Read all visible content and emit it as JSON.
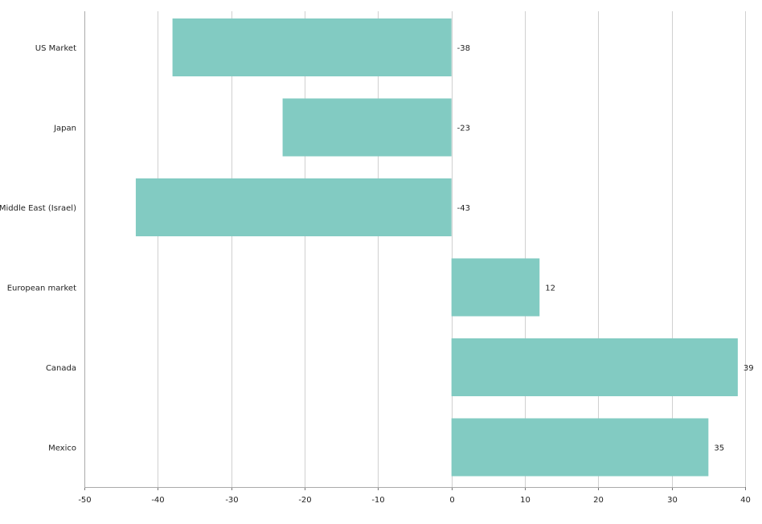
{
  "chart_data": {
    "type": "bar",
    "orientation": "horizontal",
    "categories": [
      "US Market",
      "Japan",
      "Middle East (Israel)",
      "European market",
      "Canada",
      "Mexico"
    ],
    "values": [
      -38,
      -23,
      -43,
      12,
      39,
      35
    ],
    "xlim": [
      -50,
      40
    ],
    "x_ticks": [
      -50,
      -40,
      -30,
      -20,
      -10,
      0,
      10,
      20,
      30,
      40
    ],
    "grid": true,
    "data_labels": true,
    "bar_color": "#82cbc2",
    "title": "",
    "xlabel": "",
    "ylabel": ""
  }
}
